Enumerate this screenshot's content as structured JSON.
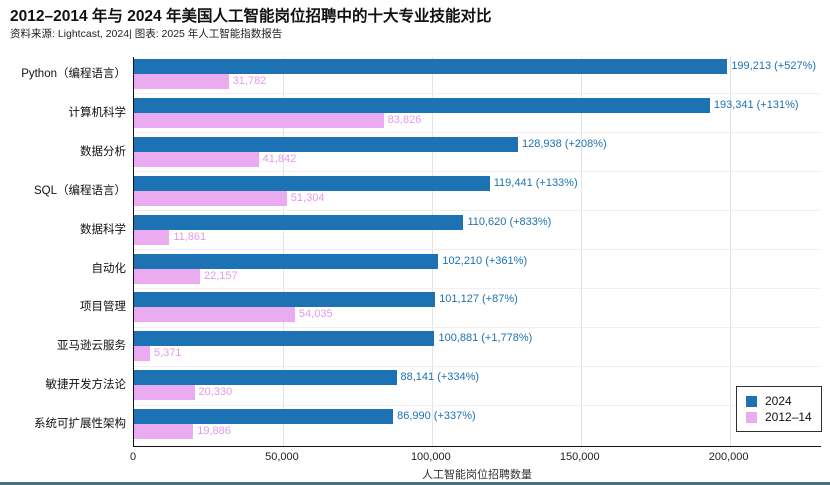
{
  "chart_data": {
    "type": "bar",
    "orientation": "horizontal",
    "title": "2012–2014 年与 2024 年美国人工智能岗位招聘中的十大专业技能对比",
    "subtitle": "资料来源: Lightcast, 2024| 图表: 2025 年人工智能指数报告",
    "xlabel": "人工智能岗位招聘数量",
    "xlim": [
      0,
      231000
    ],
    "grid": "vertical",
    "legend_position": "lower right",
    "categories": [
      "Python（编程语言）",
      "计算机科学",
      "数据分析",
      "SQL（编程语言）",
      "数据科学",
      "自动化",
      "项目管理",
      "亚马逊云服务",
      "敏捷开发方法论",
      "系统可扩展性架构"
    ],
    "xticks": [
      {
        "value": 0,
        "label": "0"
      },
      {
        "value": 50000,
        "label": "50,000"
      },
      {
        "value": 100000,
        "label": "100,000"
      },
      {
        "value": 150000,
        "label": "150,000"
      },
      {
        "value": 200000,
        "label": "200,000"
      }
    ],
    "series": [
      {
        "name": "2024",
        "color": "#1d72b4",
        "label_color": "#1d72b4",
        "values": [
          199213,
          193341,
          128938,
          119441,
          110620,
          102210,
          101127,
          100881,
          88141,
          86990
        ],
        "labels": [
          "199,213 (+527%)",
          "193,341 (+131%)",
          "128,938 (+208%)",
          "119,441 (+133%)",
          "110,620 (+833%)",
          "102,210 (+361%)",
          "101,127 (+87%)",
          "100,881 (+1,778%)",
          "88,141 (+334%)",
          "86,990 (+337%)"
        ]
      },
      {
        "name": "2012–14",
        "color": "#eaabf0",
        "label_color": "#e29ae9",
        "values": [
          31782,
          83826,
          41842,
          51304,
          11861,
          22157,
          54035,
          5371,
          20330,
          19886
        ],
        "labels": [
          "31,782",
          "83,826",
          "41,842",
          "51,304",
          "11,861",
          "22,157",
          "54,035",
          "5,371",
          "20,330",
          "19,886"
        ]
      }
    ]
  }
}
